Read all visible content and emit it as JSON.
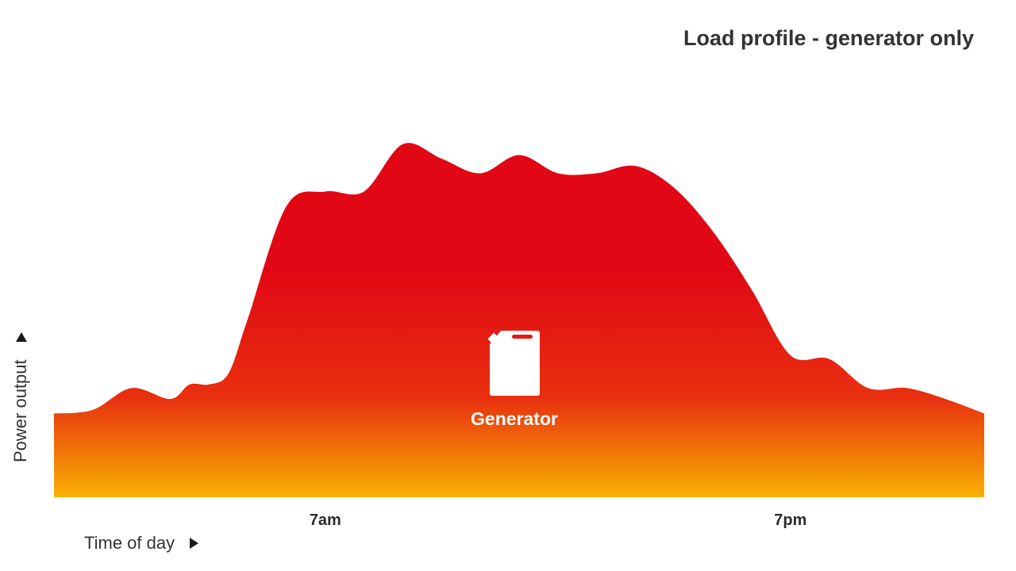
{
  "chart_data": {
    "type": "area",
    "title": "Load profile - generator only",
    "xlabel": "Time of day",
    "ylabel": "Power output",
    "x_ticks": [
      {
        "hour": 7,
        "label": "7am"
      },
      {
        "hour": 19,
        "label": "7pm"
      }
    ],
    "x_range": [
      0,
      24
    ],
    "y_range": [
      0,
      100
    ],
    "series": [
      {
        "name": "Generator",
        "icon": "fuel-can-icon",
        "colors": {
          "top": "#e10715",
          "mid": "#e8300f",
          "bottom": "#f9b103"
        },
        "x": [
          0,
          1,
          2,
          3,
          3.5,
          4,
          4.5,
          5,
          6,
          7,
          8,
          9,
          10,
          11,
          12,
          13,
          14,
          15,
          16,
          17,
          18,
          19,
          20,
          21,
          22,
          23,
          24
        ],
        "values": [
          23,
          24,
          30,
          27,
          31,
          31,
          34,
          49,
          80,
          84,
          84,
          97,
          93,
          89,
          94,
          89,
          89,
          91,
          85,
          73,
          57,
          39,
          38,
          30,
          30,
          27,
          23
        ]
      }
    ],
    "grid": false,
    "legend": "none"
  }
}
